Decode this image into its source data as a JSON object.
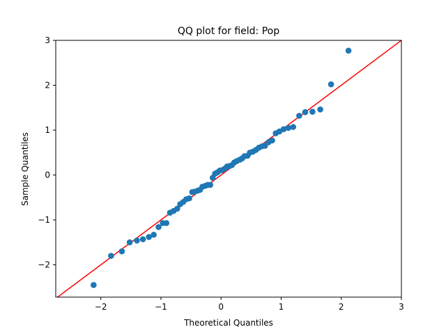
{
  "chart_data": {
    "type": "scatter",
    "title": "QQ plot for field: Pop",
    "xlabel": "Theoretical Quantiles",
    "ylabel": "Sample Quantiles",
    "xlim": [
      -2.75,
      3.0
    ],
    "ylim": [
      -2.72,
      3.0
    ],
    "x_ticks": [
      -2,
      -1,
      0,
      1,
      2,
      3
    ],
    "y_ticks": [
      -2,
      -1,
      0,
      1,
      2,
      3
    ],
    "x_tick_labels": [
      "−2",
      "−1",
      "0",
      "1",
      "2",
      "3"
    ],
    "y_tick_labels": [
      "−2",
      "−1",
      "0",
      "1",
      "2",
      "3"
    ],
    "grid": false,
    "legend": "none",
    "colors": {
      "points": "#1f77b4",
      "reference_line": "#ff0000"
    },
    "reference_line": {
      "slope": 1,
      "intercept": 0
    },
    "points": [
      [
        -2.12,
        -2.45
      ],
      [
        -1.83,
        -1.8
      ],
      [
        -1.65,
        -1.7
      ],
      [
        -1.52,
        -1.5
      ],
      [
        -1.4,
        -1.46
      ],
      [
        -1.3,
        -1.43
      ],
      [
        -1.2,
        -1.38
      ],
      [
        -1.12,
        -1.33
      ],
      [
        -1.04,
        -1.16
      ],
      [
        -0.97,
        -1.07
      ],
      [
        -0.91,
        -1.07
      ],
      [
        -0.85,
        -0.84
      ],
      [
        -0.79,
        -0.8
      ],
      [
        -0.73,
        -0.75
      ],
      [
        -0.68,
        -0.65
      ],
      [
        -0.63,
        -0.6
      ],
      [
        -0.58,
        -0.54
      ],
      [
        -0.53,
        -0.52
      ],
      [
        -0.48,
        -0.38
      ],
      [
        -0.44,
        -0.37
      ],
      [
        -0.39,
        -0.35
      ],
      [
        -0.35,
        -0.33
      ],
      [
        -0.31,
        -0.26
      ],
      [
        -0.26,
        -0.24
      ],
      [
        -0.22,
        -0.22
      ],
      [
        -0.18,
        -0.22
      ],
      [
        -0.14,
        -0.06
      ],
      [
        -0.1,
        0.03
      ],
      [
        -0.06,
        0.06
      ],
      [
        -0.02,
        0.1
      ],
      [
        0.02,
        0.11
      ],
      [
        0.06,
        0.14
      ],
      [
        0.1,
        0.19
      ],
      [
        0.14,
        0.2
      ],
      [
        0.18,
        0.22
      ],
      [
        0.22,
        0.28
      ],
      [
        0.26,
        0.31
      ],
      [
        0.31,
        0.34
      ],
      [
        0.35,
        0.37
      ],
      [
        0.39,
        0.42
      ],
      [
        0.44,
        0.43
      ],
      [
        0.48,
        0.5
      ],
      [
        0.53,
        0.52
      ],
      [
        0.58,
        0.56
      ],
      [
        0.63,
        0.61
      ],
      [
        0.68,
        0.64
      ],
      [
        0.73,
        0.65
      ],
      [
        0.79,
        0.73
      ],
      [
        0.85,
        0.77
      ],
      [
        0.91,
        0.93
      ],
      [
        0.97,
        0.97
      ],
      [
        1.04,
        1.02
      ],
      [
        1.12,
        1.05
      ],
      [
        1.2,
        1.07
      ],
      [
        1.3,
        1.32
      ],
      [
        1.4,
        1.4
      ],
      [
        1.52,
        1.41
      ],
      [
        1.65,
        1.46
      ],
      [
        1.83,
        2.02
      ],
      [
        2.12,
        2.77
      ]
    ]
  }
}
